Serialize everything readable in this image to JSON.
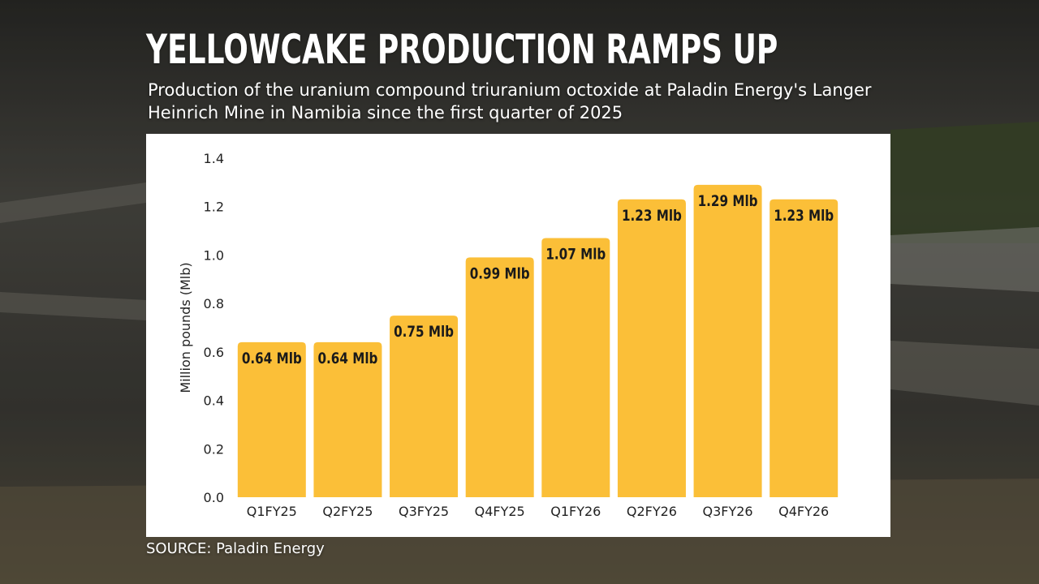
{
  "colors": {
    "bar": "#fbbf38",
    "panel": "#ffffff",
    "text": "#ffffff",
    "axis_text": "#222222"
  },
  "header": {
    "title": "YELLOWCAKE PRODUCTION RAMPS UP",
    "subtitle": "Production of the uranium compound triuranium octoxide at Paladin Energy's Langer Heinrich Mine in Namibia since the first quarter of 2025"
  },
  "footer": {
    "source": "SOURCE: Paladin Energy"
  },
  "chart_data": {
    "type": "bar",
    "title": "YELLOWCAKE PRODUCTION RAMPS UP",
    "xlabel": "",
    "ylabel": "Million pounds (Mlb)",
    "ylim": [
      0,
      1.4
    ],
    "yticks": [
      "0.0",
      "0.2",
      "0.4",
      "0.6",
      "0.8",
      "1.0",
      "1.2",
      "1.4"
    ],
    "grid": false,
    "categories": [
      "Q1FY25",
      "Q2FY25",
      "Q3FY25",
      "Q4FY25",
      "Q1FY26",
      "Q2FY26",
      "Q3FY26",
      "Q4FY26"
    ],
    "values": [
      0.64,
      0.64,
      0.75,
      0.99,
      1.07,
      1.23,
      1.29,
      1.23
    ],
    "data_labels": [
      "0.64 Mlb",
      "0.64 Mlb",
      "0.75 Mlb",
      "0.99 Mlb",
      "1.07 Mlb",
      "1.23 Mlb",
      "1.29 Mlb",
      "1.23 Mlb"
    ]
  }
}
